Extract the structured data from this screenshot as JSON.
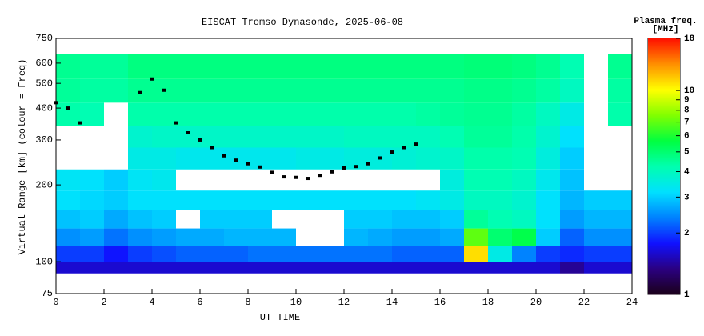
{
  "chart_data": {
    "type": "heatmap",
    "title": "EISCAT Tromso Dynasonde, 2025-06-08",
    "x_label": "UT TIME",
    "y_label": "Virtual Range [km] (colour = Freq)",
    "colorbar_title": "Plasma freq.",
    "colorbar_units": "[MHz]",
    "xlim": [
      0,
      24
    ],
    "xticks": [
      0,
      2,
      4,
      6,
      8,
      10,
      12,
      14,
      16,
      18,
      20,
      22,
      24
    ],
    "ylim": [
      75,
      750
    ],
    "yticks": [
      75,
      100,
      200,
      300,
      400,
      500,
      600,
      750
    ],
    "y_log": true,
    "clim": [
      1,
      18
    ],
    "cticks": [
      1,
      2,
      3,
      4,
      5,
      6,
      7,
      8,
      9,
      10,
      18
    ],
    "c_log": true,
    "colormap": [
      "#1a0018",
      "#2a0080",
      "#1010ff",
      "#0080ff",
      "#00e0ff",
      "#00ffb0",
      "#00ff40",
      "#80ff00",
      "#ffff00",
      "#ff9000",
      "#ff1000"
    ],
    "x_edges": [
      0,
      1,
      2,
      3,
      4,
      5,
      6,
      7,
      8,
      9,
      10,
      11,
      12,
      13,
      14,
      15,
      16,
      17,
      18,
      19,
      20,
      21,
      22,
      23,
      24
    ],
    "y_edges": [
      90,
      100,
      115,
      135,
      160,
      190,
      230,
      280,
      340,
      420,
      520,
      650
    ],
    "values": [
      [
        1.6,
        1.6,
        1.6,
        1.6,
        1.6,
        1.6,
        1.6,
        1.6,
        1.6,
        1.6,
        1.6,
        1.6,
        1.6,
        1.6,
        1.6,
        1.6,
        1.6,
        1.6,
        1.6,
        1.6,
        1.6,
        1.4,
        1.6,
        1.6
      ],
      [
        2.0,
        2.0,
        1.8,
        2.0,
        2.1,
        2.2,
        2.2,
        2.2,
        2.3,
        2.3,
        2.3,
        2.3,
        2.3,
        2.3,
        2.2,
        2.2,
        2.2,
        11,
        3.5,
        2.4,
        2.0,
        1.9,
        2.0,
        2.0
      ],
      [
        2.5,
        2.6,
        2.3,
        2.5,
        2.6,
        2.7,
        2.7,
        2.8,
        2.8,
        2.8,
        null,
        null,
        2.8,
        2.7,
        2.6,
        2.6,
        2.7,
        7,
        5,
        5.5,
        3,
        2.2,
        2.5,
        2.5
      ],
      [
        2.9,
        3.0,
        2.7,
        2.9,
        3.0,
        null,
        3.0,
        3.0,
        3.0,
        null,
        null,
        null,
        3.0,
        3.0,
        2.9,
        2.9,
        3.0,
        4.5,
        4.2,
        4.0,
        3.2,
        2.6,
        2.8,
        2.8
      ],
      [
        3.2,
        3.1,
        3.0,
        3.2,
        3.2,
        3.2,
        3.2,
        3.2,
        3.2,
        3.2,
        3.2,
        3.2,
        3.2,
        3.2,
        3.2,
        3.3,
        3.5,
        4.0,
        4.0,
        3.8,
        3.2,
        2.8,
        3.0,
        3.0
      ],
      [
        3.3,
        3.2,
        3.0,
        3.3,
        3.4,
        null,
        null,
        null,
        null,
        null,
        null,
        null,
        null,
        null,
        null,
        null,
        3.6,
        4.2,
        4.2,
        4.0,
        3.4,
        2.9,
        null,
        null
      ],
      [
        null,
        null,
        null,
        3.5,
        3.5,
        3.4,
        3.4,
        3.4,
        3.4,
        3.4,
        3.5,
        3.5,
        3.6,
        3.6,
        3.7,
        3.8,
        3.9,
        4.3,
        4.3,
        4.2,
        3.6,
        3.0,
        null,
        null
      ],
      [
        null,
        null,
        null,
        3.8,
        3.9,
        3.9,
        3.9,
        3.9,
        3.9,
        3.9,
        3.9,
        3.9,
        4.0,
        4.0,
        4.0,
        4.0,
        4.2,
        4.5,
        4.5,
        4.3,
        3.8,
        3.2,
        null,
        null
      ],
      [
        4.3,
        4.2,
        null,
        4.3,
        4.3,
        4.3,
        4.3,
        4.3,
        4.3,
        4.3,
        4.3,
        4.3,
        4.3,
        4.3,
        4.3,
        4.4,
        4.5,
        4.6,
        4.6,
        4.4,
        4.0,
        3.5,
        null,
        4.3
      ],
      [
        4.5,
        4.4,
        4.4,
        4.6,
        4.6,
        4.6,
        4.6,
        4.6,
        4.6,
        4.6,
        4.6,
        4.6,
        4.6,
        4.6,
        4.6,
        4.6,
        4.6,
        4.7,
        4.7,
        4.6,
        4.4,
        4.0,
        null,
        4.4
      ],
      [
        4.6,
        4.5,
        4.5,
        4.8,
        4.8,
        4.8,
        4.8,
        4.8,
        4.8,
        4.8,
        4.8,
        4.8,
        4.8,
        4.8,
        4.8,
        4.8,
        4.8,
        4.9,
        4.9,
        4.8,
        4.6,
        4.2,
        null,
        4.6
      ]
    ],
    "trace": {
      "color": "#000000",
      "x": [
        0,
        0.5,
        1,
        3.5,
        4,
        4.5,
        5,
        5.5,
        6,
        6.5,
        7,
        7.5,
        8,
        8.5,
        9,
        9.5,
        10,
        10.5,
        11,
        11.5,
        12,
        12.5,
        13,
        13.5,
        14,
        14.5,
        15
      ],
      "y": [
        420,
        400,
        350,
        460,
        520,
        470,
        350,
        320,
        300,
        280,
        260,
        250,
        242,
        235,
        224,
        215,
        214,
        212,
        218,
        225,
        233,
        236,
        242,
        255,
        269,
        280,
        289
      ]
    }
  }
}
